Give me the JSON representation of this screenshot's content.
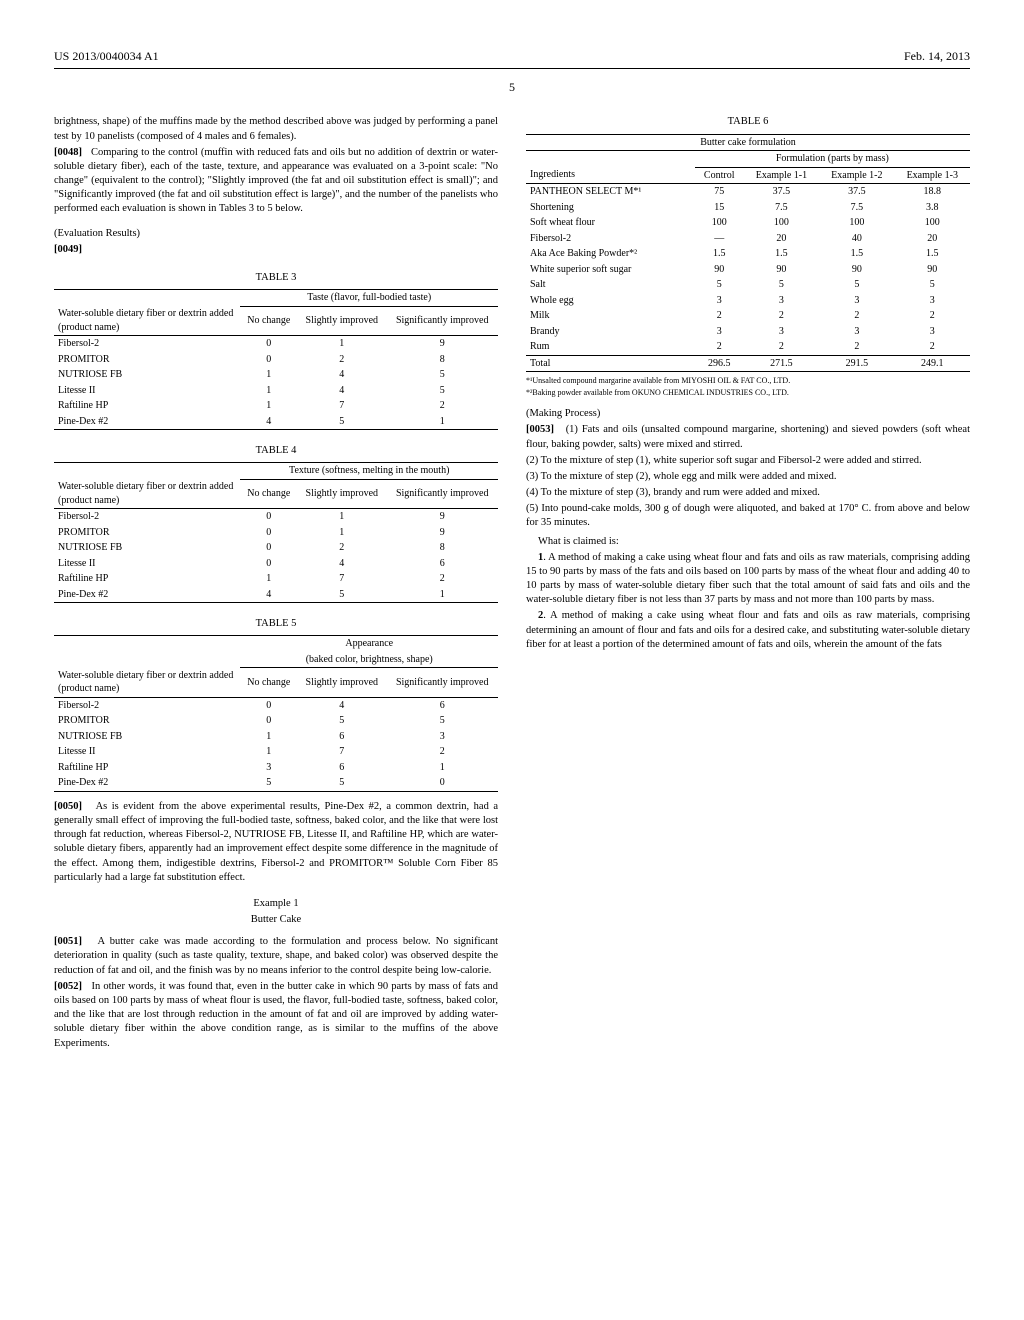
{
  "header": {
    "left": "US 2013/0040034 A1",
    "right": "Feb. 14, 2013",
    "page": "5"
  },
  "col1": {
    "p1_a": "brightness, shape) of the muffins made by the method described above was judged by performing a panel test by 10 panelists (composed of 4 males and 6 females).",
    "p2_num": "[0048]",
    "p2": "Comparing to the control (muffin with reduced fats and oils but no addition of dextrin or water-soluble dietary fiber), each of the taste, texture, and appearance was evaluated on a 3-point scale: \"No change\" (equivalent to the control); \"Slightly improved (the fat and oil substitution effect is small)\"; and \"Significantly improved (the fat and oil substitution effect is large)\", and the number of the panelists who performed each evaluation is shown in Tables 3 to 5 below.",
    "eval": "(Evaluation Results)",
    "p3_num": "[0049]",
    "tbl3": {
      "title": "TABLE 3",
      "group": "Taste (flavor, full-bodied taste)",
      "h1": "Water-soluble dietary fiber or dextrin added (product name)",
      "h2": "No change",
      "h3": "Slightly improved",
      "h4": "Significantly improved",
      "rows": [
        {
          "n": "Fibersol-2",
          "a": "0",
          "b": "1",
          "c": "9"
        },
        {
          "n": "PROMITOR",
          "a": "0",
          "b": "2",
          "c": "8"
        },
        {
          "n": "NUTRIOSE FB",
          "a": "1",
          "b": "4",
          "c": "5"
        },
        {
          "n": "Litesse II",
          "a": "1",
          "b": "4",
          "c": "5"
        },
        {
          "n": "Raftiline HP",
          "a": "1",
          "b": "7",
          "c": "2"
        },
        {
          "n": "Pine-Dex #2",
          "a": "4",
          "b": "5",
          "c": "1"
        }
      ]
    },
    "tbl4": {
      "title": "TABLE 4",
      "group": "Texture (softness, melting in the mouth)",
      "h1": "Water-soluble dietary fiber or dextrin added (product name)",
      "h2": "No change",
      "h3": "Slightly improved",
      "h4": "Significantly improved",
      "rows": [
        {
          "n": "Fibersol-2",
          "a": "0",
          "b": "1",
          "c": "9"
        },
        {
          "n": "PROMITOR",
          "a": "0",
          "b": "1",
          "c": "9"
        },
        {
          "n": "NUTRIOSE FB",
          "a": "0",
          "b": "2",
          "c": "8"
        },
        {
          "n": "Litesse II",
          "a": "0",
          "b": "4",
          "c": "6"
        },
        {
          "n": "Raftiline HP",
          "a": "1",
          "b": "7",
          "c": "2"
        },
        {
          "n": "Pine-Dex #2",
          "a": "4",
          "b": "5",
          "c": "1"
        }
      ]
    },
    "tbl5": {
      "title": "TABLE 5",
      "group_a": "Appearance",
      "group_b": "(baked color, brightness, shape)",
      "h1": "Water-soluble dietary fiber or dextrin added (product name)",
      "h2": "No change",
      "h3": "Slightly improved",
      "h4": "Significantly improved",
      "rows": [
        {
          "n": "Fibersol-2",
          "a": "0",
          "b": "4",
          "c": "6"
        },
        {
          "n": "PROMITOR",
          "a": "0",
          "b": "5",
          "c": "5"
        },
        {
          "n": "NUTRIOSE FB",
          "a": "1",
          "b": "6",
          "c": "3"
        },
        {
          "n": "Litesse II",
          "a": "1",
          "b": "7",
          "c": "2"
        },
        {
          "n": "Raftiline HP",
          "a": "3",
          "b": "6",
          "c": "1"
        },
        {
          "n": "Pine-Dex #2",
          "a": "5",
          "b": "5",
          "c": "0"
        }
      ]
    },
    "p4_num": "[0050]",
    "p4": "As is evident from the above experimental results, Pine-Dex #2, a common dextrin, had a generally small effect of improving the full-bodied taste, softness, baked color, and the like that were lost through fat reduction, whereas Fibersol-2, NUTRIOSE FB, Litesse II, and Raftiline HP, which are water-soluble dietary fibers, apparently had an improvement effect despite some difference in the magnitude of the effect. Among them, indigestible dextrins, Fibersol-2 and PROMITOR™ Soluble Corn Fiber 85 particularly had a large fat substitution effect."
  },
  "col2": {
    "ex_label": "Example 1",
    "ex_title": "Butter Cake",
    "p5_num": "[0051]",
    "p5": "A butter cake was made according to the formulation and process below. No significant deterioration in quality (such as taste quality, texture, shape, and baked color) was observed despite the reduction of fat and oil, and the finish was by no means inferior to the control despite being low-calorie.",
    "p6_num": "[0052]",
    "p6": "In other words, it was found that, even in the butter cake in which 90 parts by mass of fats and oils based on 100 parts by mass of wheat flour is used, the flavor, full-bodied taste, softness, baked color, and the like that are lost through reduction in the amount of fat and oil are improved by adding water-soluble dietary fiber within the above condition range, as is similar to the muffins of the above Experiments.",
    "tbl6": {
      "title": "TABLE 6",
      "sub": "Butter cake formulation",
      "group": "Formulation (parts by mass)",
      "h_ing": "Ingredients",
      "h_ctrl": "Control",
      "h_e1": "Example 1-1",
      "h_e2": "Example 1-2",
      "h_e3": "Example 1-3",
      "rows": [
        {
          "n": "PANTHEON SELECT M*¹",
          "a": "75",
          "b": "37.5",
          "c": "37.5",
          "d": "18.8"
        },
        {
          "n": "Shortening",
          "a": "15",
          "b": "7.5",
          "c": "7.5",
          "d": "3.8"
        },
        {
          "n": "Soft wheat flour",
          "a": "100",
          "b": "100",
          "c": "100",
          "d": "100"
        },
        {
          "n": "Fibersol-2",
          "a": "—",
          "b": "20",
          "c": "40",
          "d": "20"
        },
        {
          "n": "Aka Ace Baking Powder*²",
          "a": "1.5",
          "b": "1.5",
          "c": "1.5",
          "d": "1.5"
        },
        {
          "n": "White superior soft sugar",
          "a": "90",
          "b": "90",
          "c": "90",
          "d": "90"
        },
        {
          "n": "Salt",
          "a": "5",
          "b": "5",
          "c": "5",
          "d": "5"
        },
        {
          "n": "Whole egg",
          "a": "3",
          "b": "3",
          "c": "3",
          "d": "3"
        },
        {
          "n": "Milk",
          "a": "2",
          "b": "2",
          "c": "2",
          "d": "2"
        },
        {
          "n": "Brandy",
          "a": "3",
          "b": "3",
          "c": "3",
          "d": "3"
        },
        {
          "n": "Rum",
          "a": "2",
          "b": "2",
          "c": "2",
          "d": "2"
        }
      ],
      "total": {
        "n": "Total",
        "a": "296.5",
        "b": "271.5",
        "c": "291.5",
        "d": "249.1"
      },
      "fn1": "*¹Unsalted compound margarine available from MIYOSHI OIL & FAT CO., LTD.",
      "fn2": "*²Baking powder available from OKUNO CHEMICAL INDUSTRIES CO., LTD."
    },
    "mp_head": "(Making Process)",
    "p7_num": "[0053]",
    "p7_1": "(1) Fats and oils (unsalted compound margarine, shortening) and sieved powders (soft wheat flour, baking powder, salts) were mixed and stirred.",
    "p7_2": "(2) To the mixture of step (1), white superior soft sugar and Fibersol-2 were added and stirred.",
    "p7_3": "(3) To the mixture of step (2), whole egg and milk were added and mixed.",
    "p7_4": "(4) To the mixture of step (3), brandy and rum were added and mixed.",
    "p7_5": "(5) Into pound-cake molds, 300 g of dough were aliquoted, and baked at 170° C. from above and below for 35 minutes.",
    "claims_head": "What is claimed is:",
    "c1_num": "1",
    "c1": ". A method of making a cake using wheat flour and fats and oils as raw materials, comprising adding 15 to 90 parts by mass of the fats and oils based on 100 parts by mass of the wheat flour and adding 40 to 10 parts by mass of water-soluble dietary fiber such that the total amount of said fats and oils and the water-soluble dietary fiber is not less than 37 parts by mass and not more than 100 parts by mass.",
    "c2_num": "2",
    "c2": ". A method of making a cake using wheat flour and fats and oils as raw materials, comprising determining an amount of flour and fats and oils for a desired cake, and substituting water-soluble dietary fiber for at least a portion of the determined amount of fats and oils, wherein the amount of the fats"
  }
}
